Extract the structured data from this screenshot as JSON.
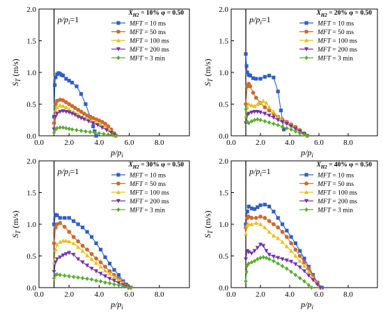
{
  "colors": {
    "mft_10ms": "#2f5fc4",
    "mft_50ms": "#cf6a2a",
    "mft_100ms": "#e6c11e",
    "mft_200ms": "#7433a8",
    "mft_3min": "#5aab2e"
  },
  "chart_data": [
    {
      "type": "scatter",
      "panel": "top-left",
      "xh2": "10%",
      "phi": "0.50",
      "annotation": "p/pi=1",
      "ylabel": "ST (m/s)",
      "xlabel": "p/pi",
      "xlim": [
        0,
        10
      ],
      "ylim": [
        0,
        2
      ],
      "xticks": [
        "0.0",
        "2.0",
        "4.0",
        "6.0",
        "8.0"
      ],
      "yticks": [
        "0.0",
        "0.5",
        "1.0",
        "1.5",
        "2.0"
      ],
      "legend": "top-right",
      "series": [
        {
          "name": "10 ms",
          "color_key": "mft_10ms",
          "marker": "square",
          "x": [
            1.0,
            1.05,
            1.1,
            1.2,
            1.3,
            1.4,
            1.5,
            1.6,
            1.8,
            2.0,
            2.2,
            2.5,
            2.8,
            3.1,
            3.4,
            3.6,
            3.7,
            3.8
          ],
          "y": [
            0.3,
            0.8,
            0.92,
            0.97,
            0.99,
            0.98,
            0.96,
            0.95,
            0.9,
            0.87,
            0.84,
            0.78,
            0.66,
            0.5,
            0.3,
            0.15,
            0.07,
            0.0
          ]
        },
        {
          "name": "50 ms",
          "color_key": "mft_50ms",
          "marker": "circle",
          "x": [
            1.0,
            1.1,
            1.2,
            1.4,
            1.6,
            1.8,
            2.0,
            2.2,
            2.4,
            2.6,
            2.8,
            3.0,
            3.2,
            3.4,
            3.6,
            3.8,
            4.0,
            4.2,
            4.4,
            4.6,
            4.8,
            5.0,
            5.1
          ],
          "y": [
            0.2,
            0.5,
            0.55,
            0.57,
            0.56,
            0.53,
            0.5,
            0.47,
            0.44,
            0.41,
            0.38,
            0.35,
            0.32,
            0.3,
            0.28,
            0.26,
            0.24,
            0.22,
            0.19,
            0.15,
            0.1,
            0.04,
            0.0
          ]
        },
        {
          "name": "100 ms",
          "color_key": "mft_100ms",
          "marker": "triangle-up",
          "x": [
            1.0,
            1.1,
            1.2,
            1.4,
            1.6,
            1.8,
            2.0,
            2.3,
            2.6,
            2.9,
            3.2,
            3.5,
            3.8,
            4.1,
            4.4,
            4.7,
            5.0,
            5.1
          ],
          "y": [
            0.15,
            0.4,
            0.45,
            0.48,
            0.47,
            0.45,
            0.42,
            0.38,
            0.34,
            0.3,
            0.27,
            0.24,
            0.21,
            0.18,
            0.14,
            0.09,
            0.03,
            0.0
          ]
        },
        {
          "name": "200 ms",
          "color_key": "mft_200ms",
          "marker": "triangle-down",
          "x": [
            1.0,
            1.1,
            1.2,
            1.4,
            1.6,
            1.8,
            2.0,
            2.2,
            2.4,
            2.6,
            2.8,
            3.0,
            3.3,
            3.6,
            3.9,
            4.2,
            4.5,
            4.8,
            5.0,
            5.1
          ],
          "y": [
            0.1,
            0.3,
            0.35,
            0.38,
            0.39,
            0.38,
            0.37,
            0.35,
            0.33,
            0.3,
            0.28,
            0.26,
            0.23,
            0.2,
            0.17,
            0.13,
            0.09,
            0.05,
            0.02,
            0.0
          ]
        },
        {
          "name": "3 min",
          "color_key": "mft_3min",
          "marker": "diamond",
          "x": [
            1.0,
            1.1,
            1.2,
            1.4,
            1.6,
            1.8,
            2.0,
            2.2,
            2.5,
            2.8,
            3.1,
            3.4,
            3.7,
            4.0,
            4.3,
            4.6,
            4.9,
            5.1
          ],
          "y": [
            0.05,
            0.1,
            0.12,
            0.13,
            0.13,
            0.12,
            0.11,
            0.1,
            0.09,
            0.08,
            0.07,
            0.06,
            0.05,
            0.04,
            0.03,
            0.02,
            0.01,
            0.0
          ]
        }
      ]
    },
    {
      "type": "scatter",
      "panel": "top-right",
      "xh2": "20%",
      "phi": "0.50",
      "annotation": "p/pi=1",
      "ylabel": "ST (m/s)",
      "xlabel": "p/pi",
      "xlim": [
        0,
        10
      ],
      "ylim": [
        0,
        2
      ],
      "xticks": [
        "0.0",
        "2.0",
        "4.0",
        "6.0",
        "8.0"
      ],
      "yticks": [
        "0.0",
        "0.5",
        "1.0",
        "1.5",
        "2.0"
      ],
      "legend": "top-right",
      "series": [
        {
          "name": "10 ms",
          "color_key": "mft_10ms",
          "marker": "square",
          "x": [
            1.0,
            1.05,
            1.1,
            1.2,
            1.3,
            1.5,
            1.7,
            2.0,
            2.3,
            2.6,
            2.9,
            3.2,
            3.4,
            3.6
          ],
          "y": [
            1.29,
            1.1,
            1.0,
            0.96,
            0.95,
            0.91,
            0.9,
            0.9,
            0.93,
            0.95,
            0.92,
            0.7,
            0.4,
            0.1
          ]
        },
        {
          "name": "50 ms",
          "color_key": "mft_50ms",
          "marker": "circle",
          "x": [
            1.0,
            1.1,
            1.2,
            1.3,
            1.5,
            1.7,
            2.0,
            2.3,
            2.6,
            2.9,
            3.2,
            3.5,
            3.8,
            4.1,
            4.4,
            4.7,
            5.0,
            5.2
          ],
          "y": [
            0.5,
            0.78,
            0.82,
            0.78,
            0.68,
            0.6,
            0.52,
            0.45,
            0.4,
            0.35,
            0.3,
            0.26,
            0.22,
            0.18,
            0.14,
            0.09,
            0.04,
            0.0
          ]
        },
        {
          "name": "100 ms",
          "color_key": "mft_100ms",
          "marker": "triangle-up",
          "x": [
            1.0,
            1.1,
            1.2,
            1.4,
            1.6,
            1.8,
            2.0,
            2.2,
            2.4,
            2.6,
            2.9,
            3.2,
            3.5,
            3.8,
            4.1,
            4.4,
            4.7,
            5.0,
            5.2
          ],
          "y": [
            0.3,
            0.45,
            0.5,
            0.48,
            0.47,
            0.5,
            0.53,
            0.55,
            0.52,
            0.45,
            0.38,
            0.3,
            0.25,
            0.2,
            0.16,
            0.12,
            0.08,
            0.03,
            0.0
          ]
        },
        {
          "name": "200 ms",
          "color_key": "mft_200ms",
          "marker": "triangle-down",
          "x": [
            1.0,
            1.1,
            1.2,
            1.4,
            1.6,
            1.8,
            2.0,
            2.3,
            2.6,
            2.9,
            3.2,
            3.5,
            3.8,
            4.1,
            4.4,
            4.7,
            5.0,
            5.2
          ],
          "y": [
            0.2,
            0.33,
            0.35,
            0.37,
            0.38,
            0.38,
            0.37,
            0.35,
            0.32,
            0.29,
            0.25,
            0.22,
            0.19,
            0.15,
            0.11,
            0.07,
            0.03,
            0.0
          ]
        },
        {
          "name": "3 min",
          "color_key": "mft_3min",
          "marker": "diamond",
          "x": [
            1.0,
            1.05,
            1.1,
            1.2,
            1.4,
            1.6,
            1.8,
            2.0,
            2.3,
            2.6,
            2.9,
            3.2,
            3.5,
            3.8,
            4.1,
            4.4,
            4.7,
            5.0,
            5.2
          ],
          "y": [
            0.42,
            0.3,
            0.22,
            0.2,
            0.23,
            0.25,
            0.26,
            0.25,
            0.23,
            0.21,
            0.19,
            0.17,
            0.14,
            0.12,
            0.1,
            0.07,
            0.04,
            0.02,
            0.0
          ]
        }
      ]
    },
    {
      "type": "scatter",
      "panel": "bottom-left",
      "xh2": "30%",
      "phi": "0.50",
      "annotation": "p/pi=1",
      "ylabel": "ST (m/s)",
      "xlabel": "p/pi",
      "xlim": [
        0,
        10
      ],
      "ylim": [
        0,
        2
      ],
      "xticks": [
        "0.0",
        "2.0",
        "4.0",
        "6.0",
        "8.0"
      ],
      "yticks": [
        "0.0",
        "0.5",
        "1.0",
        "1.5",
        "2.0"
      ],
      "legend": "top-right",
      "series": [
        {
          "name": "10 ms",
          "color_key": "mft_10ms",
          "marker": "square",
          "x": [
            1.0,
            1.1,
            1.2,
            1.4,
            1.7,
            2.0,
            2.3,
            2.6,
            2.9,
            3.2,
            3.5,
            3.8,
            4.1,
            4.4,
            4.7,
            5.0,
            5.3,
            5.6,
            5.8,
            6.0
          ],
          "y": [
            1.0,
            1.15,
            1.14,
            1.1,
            1.1,
            1.1,
            1.05,
            1.0,
            0.95,
            0.88,
            0.8,
            0.7,
            0.6,
            0.48,
            0.38,
            0.28,
            0.2,
            0.1,
            0.05,
            0.0
          ]
        },
        {
          "name": "50 ms",
          "color_key": "mft_50ms",
          "marker": "circle",
          "x": [
            1.0,
            1.1,
            1.2,
            1.4,
            1.7,
            2.0,
            2.3,
            2.6,
            2.9,
            3.2,
            3.5,
            3.8,
            4.1,
            4.4,
            4.7,
            5.0,
            5.3,
            5.6,
            5.9,
            6.1
          ],
          "y": [
            0.7,
            0.95,
            1.0,
            1.02,
            0.96,
            0.88,
            0.8,
            0.73,
            0.66,
            0.6,
            0.53,
            0.46,
            0.4,
            0.33,
            0.26,
            0.2,
            0.14,
            0.08,
            0.03,
            0.0
          ]
        },
        {
          "name": "100 ms",
          "color_key": "mft_100ms",
          "marker": "triangle-up",
          "x": [
            1.0,
            1.1,
            1.2,
            1.4,
            1.6,
            1.8,
            2.0,
            2.3,
            2.6,
            2.9,
            3.2,
            3.5,
            3.8,
            4.1,
            4.4,
            4.7,
            5.0,
            5.3,
            5.6,
            5.9,
            6.1
          ],
          "y": [
            0.4,
            0.6,
            0.68,
            0.72,
            0.74,
            0.74,
            0.73,
            0.7,
            0.64,
            0.58,
            0.51,
            0.45,
            0.39,
            0.33,
            0.27,
            0.22,
            0.17,
            0.12,
            0.07,
            0.03,
            0.0
          ]
        },
        {
          "name": "200 ms",
          "color_key": "mft_200ms",
          "marker": "triangle-down",
          "x": [
            1.0,
            1.1,
            1.2,
            1.4,
            1.6,
            1.8,
            2.0,
            2.3,
            2.6,
            2.9,
            3.2,
            3.5,
            3.8,
            4.1,
            4.4,
            4.7,
            5.0,
            5.3,
            5.6,
            5.9,
            6.1
          ],
          "y": [
            0.25,
            0.4,
            0.45,
            0.48,
            0.51,
            0.53,
            0.55,
            0.52,
            0.45,
            0.4,
            0.35,
            0.3,
            0.26,
            0.22,
            0.18,
            0.14,
            0.11,
            0.07,
            0.04,
            0.02,
            0.0
          ]
        },
        {
          "name": "3 min",
          "color_key": "mft_3min",
          "marker": "diamond",
          "x": [
            1.0,
            1.1,
            1.2,
            1.4,
            1.7,
            2.0,
            2.3,
            2.6,
            2.9,
            3.2,
            3.5,
            3.8,
            4.1,
            4.4,
            4.7,
            5.0,
            5.3,
            5.6,
            5.9,
            6.1
          ],
          "y": [
            0.15,
            0.2,
            0.21,
            0.2,
            0.19,
            0.18,
            0.17,
            0.16,
            0.15,
            0.14,
            0.13,
            0.11,
            0.1,
            0.08,
            0.07,
            0.05,
            0.04,
            0.02,
            0.01,
            0.0
          ]
        }
      ]
    },
    {
      "type": "scatter",
      "panel": "bottom-right",
      "xh2": "40%",
      "phi": "0.50",
      "annotation": "p/pi=1",
      "ylabel": "ST (m/s)",
      "xlabel": "p/pi",
      "xlim": [
        0,
        10
      ],
      "ylim": [
        0,
        2
      ],
      "xticks": [
        "0.0",
        "2.0",
        "4.0",
        "6.0",
        "8.0"
      ],
      "yticks": [
        "0.0",
        "0.5",
        "1.0",
        "1.5",
        "2.0"
      ],
      "legend": "top-right",
      "series": [
        {
          "name": "10 ms",
          "color_key": "mft_10ms",
          "marker": "square",
          "x": [
            1.0,
            1.1,
            1.2,
            1.4,
            1.6,
            1.8,
            2.0,
            2.3,
            2.6,
            2.9,
            3.2,
            3.5,
            3.8,
            4.1,
            4.4,
            4.7,
            5.0,
            5.3,
            5.6,
            5.9,
            6.2
          ],
          "y": [
            1.0,
            1.2,
            1.28,
            1.25,
            1.24,
            1.27,
            1.3,
            1.31,
            1.28,
            1.2,
            1.1,
            1.0,
            0.9,
            0.8,
            0.7,
            0.58,
            0.46,
            0.33,
            0.2,
            0.08,
            0.0
          ]
        },
        {
          "name": "50 ms",
          "color_key": "mft_50ms",
          "marker": "circle",
          "x": [
            1.0,
            1.1,
            1.2,
            1.4,
            1.7,
            2.0,
            2.3,
            2.6,
            2.9,
            3.2,
            3.5,
            3.8,
            4.1,
            4.4,
            4.7,
            5.0,
            5.3,
            5.6,
            5.9,
            6.1
          ],
          "y": [
            0.95,
            1.1,
            1.12,
            1.1,
            1.1,
            1.12,
            1.1,
            1.05,
            1.0,
            0.95,
            0.88,
            0.8,
            0.7,
            0.6,
            0.5,
            0.4,
            0.3,
            0.18,
            0.07,
            0.0
          ]
        },
        {
          "name": "100 ms",
          "color_key": "mft_100ms",
          "marker": "triangle-up",
          "x": [
            1.0,
            1.1,
            1.2,
            1.4,
            1.7,
            2.0,
            2.3,
            2.6,
            2.9,
            3.2,
            3.5,
            3.8,
            4.1,
            4.4,
            4.7,
            5.0,
            5.3,
            5.6,
            5.9,
            6.1
          ],
          "y": [
            0.85,
            0.98,
            1.0,
            1.0,
            1.02,
            1.0,
            0.95,
            0.88,
            0.82,
            0.78,
            0.72,
            0.65,
            0.58,
            0.5,
            0.42,
            0.34,
            0.25,
            0.15,
            0.06,
            0.0
          ]
        },
        {
          "name": "200 ms",
          "color_key": "mft_200ms",
          "marker": "triangle-down",
          "x": [
            1.0,
            1.1,
            1.2,
            1.4,
            1.6,
            1.8,
            2.0,
            2.2,
            2.4,
            2.6,
            2.9,
            3.2,
            3.5,
            3.8,
            4.1,
            4.4,
            4.7,
            5.0,
            5.3,
            5.6,
            5.9,
            6.1
          ],
          "y": [
            0.45,
            0.58,
            0.56,
            0.54,
            0.58,
            0.63,
            0.68,
            0.66,
            0.58,
            0.52,
            0.49,
            0.47,
            0.45,
            0.43,
            0.41,
            0.37,
            0.32,
            0.26,
            0.19,
            0.12,
            0.05,
            0.0
          ]
        },
        {
          "name": "3 min",
          "color_key": "mft_3min",
          "marker": "diamond",
          "x": [
            1.0,
            1.05,
            1.1,
            1.2,
            1.4,
            1.6,
            1.8,
            2.0,
            2.2,
            2.4,
            2.6,
            2.9,
            3.2,
            3.5,
            3.8,
            4.1,
            4.4,
            4.7,
            5.0,
            5.3,
            5.5
          ],
          "y": [
            0.1,
            0.25,
            0.35,
            0.38,
            0.4,
            0.42,
            0.45,
            0.47,
            0.48,
            0.47,
            0.45,
            0.42,
            0.38,
            0.34,
            0.3,
            0.25,
            0.2,
            0.15,
            0.1,
            0.04,
            0.0
          ]
        }
      ]
    }
  ]
}
